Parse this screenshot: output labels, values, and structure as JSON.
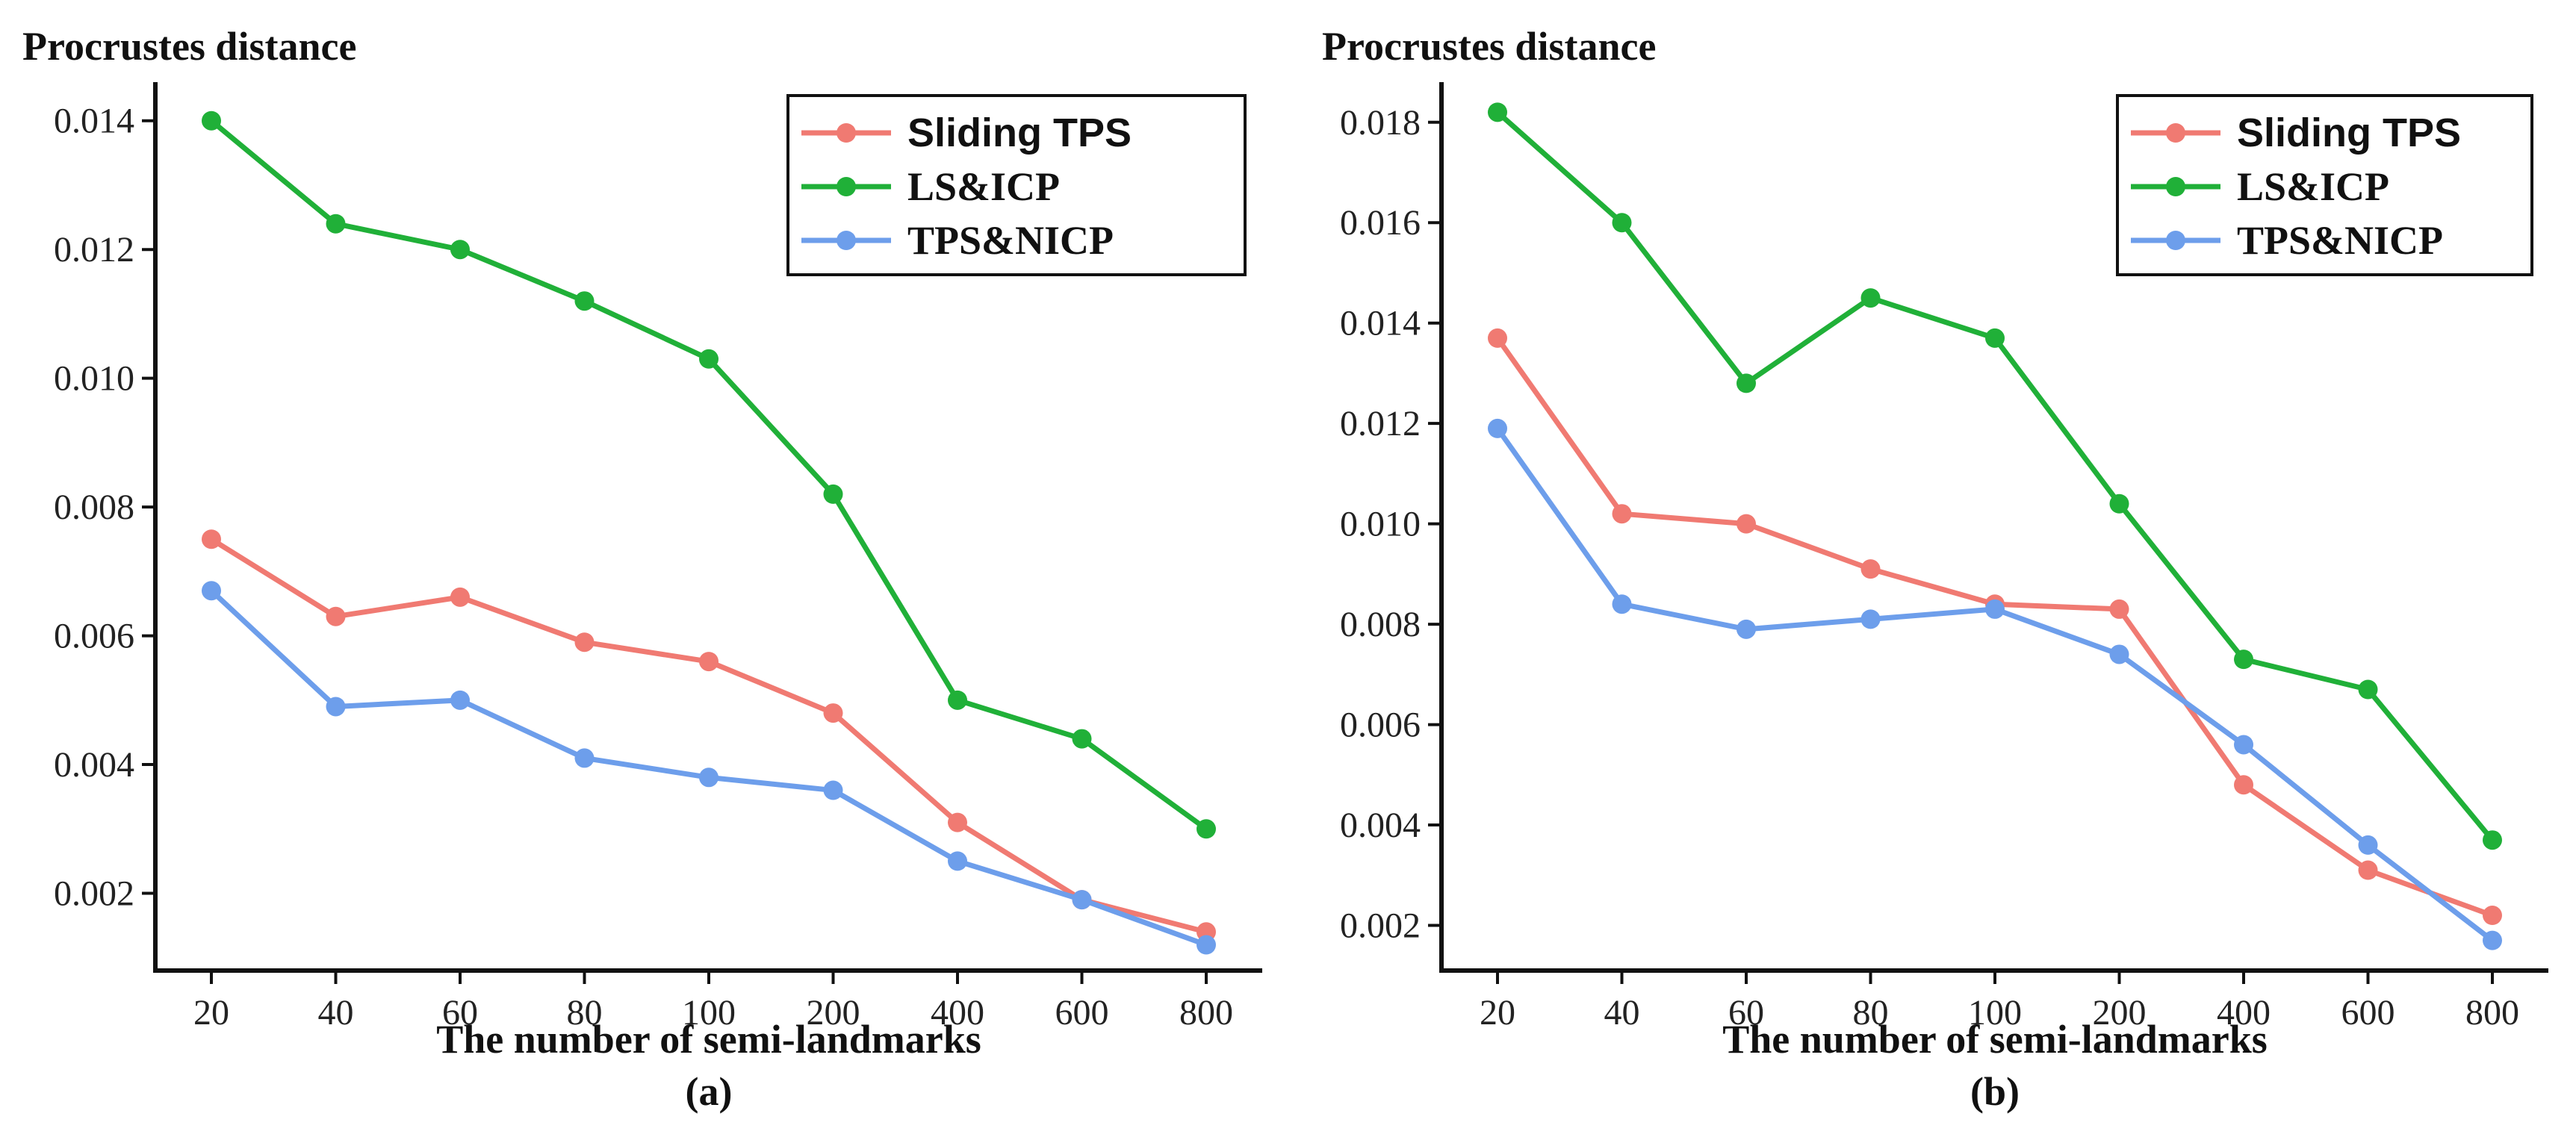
{
  "chart_data": [
    {
      "type": "line",
      "title": "Procrustes distance",
      "xlabel": "The number of semi-landmarks",
      "panel_label": "(a)",
      "categories": [
        "20",
        "40",
        "60",
        "80",
        "100",
        "200",
        "400",
        "600",
        "800"
      ],
      "ylim": [
        0.0008,
        0.0146
      ],
      "yticks": [
        "0.002",
        "0.004",
        "0.006",
        "0.008",
        "0.010",
        "0.012",
        "0.014"
      ],
      "legend_position": "top-right",
      "series": [
        {
          "name": "Sliding TPS",
          "color": "#F07A72",
          "values": [
            0.0075,
            0.0063,
            0.0066,
            0.0059,
            0.0056,
            0.0048,
            0.0031,
            0.0019,
            0.0014
          ]
        },
        {
          "name": "LS&ICP",
          "color": "#20B038",
          "values": [
            0.014,
            0.0124,
            0.012,
            0.0112,
            0.0103,
            0.0082,
            0.005,
            0.0044,
            0.003
          ]
        },
        {
          "name": "TPS&NICP",
          "color": "#6D9EEB",
          "values": [
            0.0067,
            0.0049,
            0.005,
            0.0041,
            0.0038,
            0.0036,
            0.0025,
            0.0019,
            0.0012
          ]
        }
      ]
    },
    {
      "type": "line",
      "title": "Procrustes distance",
      "xlabel": "The number of semi-landmarks",
      "panel_label": "(b)",
      "categories": [
        "20",
        "40",
        "60",
        "80",
        "100",
        "200",
        "400",
        "600",
        "800"
      ],
      "ylim": [
        0.0011,
        0.0188
      ],
      "yticks": [
        "0.002",
        "0.004",
        "0.006",
        "0.008",
        "0.010",
        "0.012",
        "0.014",
        "0.016",
        "0.018"
      ],
      "legend_position": "top-right",
      "series": [
        {
          "name": "Sliding TPS",
          "color": "#F07A72",
          "values": [
            0.0137,
            0.0102,
            0.01,
            0.0091,
            0.0084,
            0.0083,
            0.0048,
            0.0031,
            0.0022
          ]
        },
        {
          "name": "LS&ICP",
          "color": "#20B038",
          "values": [
            0.0182,
            0.016,
            0.0128,
            0.0145,
            0.0137,
            0.0104,
            0.0073,
            0.0067,
            0.0037
          ]
        },
        {
          "name": "TPS&NICP",
          "color": "#6D9EEB",
          "values": [
            0.0119,
            0.0084,
            0.0079,
            0.0081,
            0.0083,
            0.0074,
            0.0056,
            0.0036,
            0.0017
          ]
        }
      ]
    }
  ]
}
